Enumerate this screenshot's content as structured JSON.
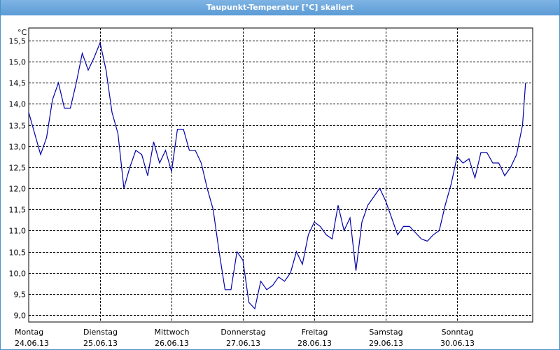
{
  "window": {
    "title": "Taupunkt-Temperatur [°C] skaliert"
  },
  "chart_data": {
    "type": "line",
    "title": "Taupunkt-Temperatur [°C] skaliert",
    "ylabel": "°C",
    "xlabel": "",
    "ylim": [
      8.9,
      15.7
    ],
    "yticks": [
      "15,5",
      "15,0",
      "14,5",
      "14,0",
      "13,5",
      "13,0",
      "12,5",
      "12,0",
      "11,5",
      "11,0",
      "10,5",
      "10,0",
      "9,5",
      "9,0"
    ],
    "x_axis": {
      "days": [
        {
          "name": "Montag",
          "date": "24.06.13"
        },
        {
          "name": "Dienstag",
          "date": "25.06.13"
        },
        {
          "name": "Mittwoch",
          "date": "26.06.13"
        },
        {
          "name": "Donnerstag",
          "date": "27.06.13"
        },
        {
          "name": "Freitag",
          "date": "28.06.13"
        },
        {
          "name": "Samstag",
          "date": "29.06.13"
        },
        {
          "name": "Sonntag",
          "date": "30.06.13"
        }
      ]
    },
    "grid": true,
    "line_color": "#0000aa",
    "series": [
      {
        "x_hours": [
          0,
          2,
          4,
          6,
          8,
          10,
          12,
          14,
          16,
          18,
          20,
          22,
          24,
          26,
          28,
          30,
          32,
          34,
          36,
          38,
          40,
          42,
          44,
          46,
          48,
          50,
          52,
          54,
          56,
          58,
          60,
          62,
          64,
          66,
          68,
          70,
          72,
          74,
          76,
          78,
          80,
          82,
          84,
          86,
          88,
          90,
          92,
          94,
          96,
          98,
          100,
          102,
          104,
          106,
          108,
          110,
          112,
          114,
          116,
          118,
          120,
          122,
          124,
          126,
          128,
          130,
          132,
          134,
          136,
          138,
          140,
          142,
          144,
          146,
          148,
          150,
          152,
          154,
          156,
          158,
          160,
          162,
          164,
          166,
          167
        ],
        "values": [
          13.8,
          13.3,
          12.8,
          13.2,
          14.1,
          14.5,
          13.9,
          13.9,
          14.5,
          15.2,
          14.8,
          15.1,
          15.45,
          14.8,
          13.8,
          13.3,
          12.0,
          12.5,
          12.9,
          12.8,
          12.3,
          13.1,
          12.6,
          12.9,
          12.4,
          13.4,
          13.4,
          12.9,
          12.9,
          12.6,
          12.0,
          11.5,
          10.5,
          9.6,
          9.6,
          10.5,
          10.3,
          9.3,
          9.15,
          9.8,
          9.6,
          9.7,
          9.9,
          9.8,
          10.0,
          10.5,
          10.2,
          10.9,
          11.2,
          11.1,
          10.9,
          10.8,
          11.6,
          11.0,
          11.3,
          10.05,
          11.2,
          11.6,
          11.8,
          12.0,
          11.7,
          11.3,
          10.9,
          11.1,
          11.1,
          10.95,
          10.8,
          10.75,
          10.9,
          11.0,
          11.6,
          12.1,
          12.75,
          12.6,
          12.7,
          12.25,
          12.85,
          12.85,
          12.6,
          12.6,
          12.3,
          12.5,
          12.8,
          13.5,
          14.5
        ],
        "values_note": ""
      }
    ]
  }
}
